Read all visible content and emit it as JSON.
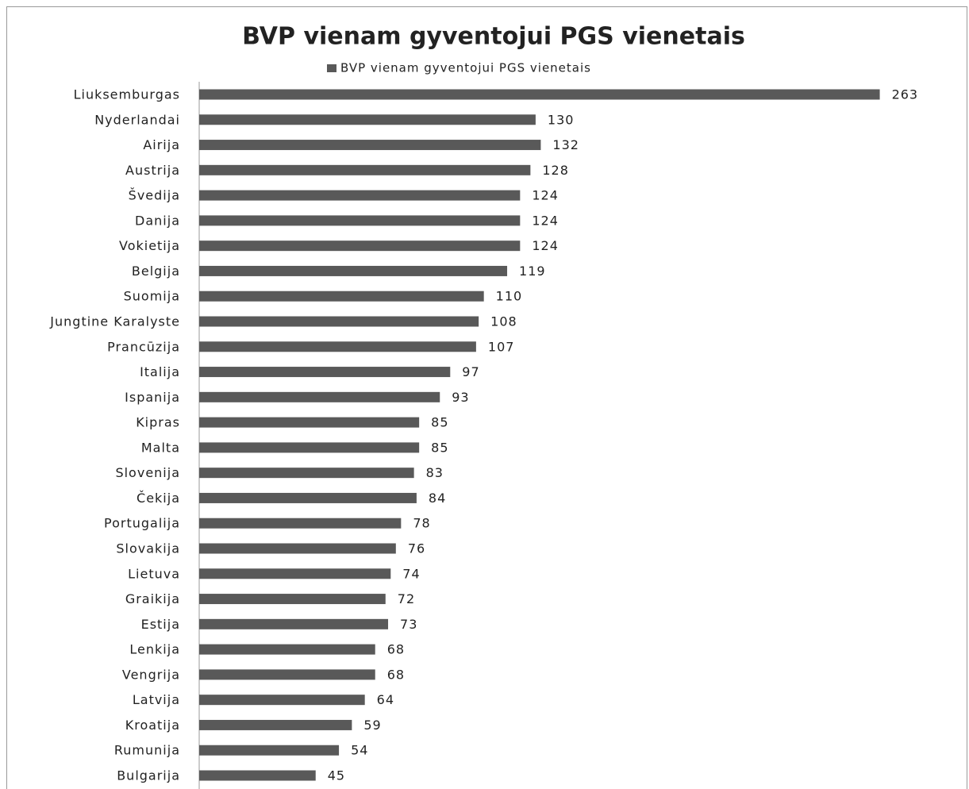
{
  "chart_data": {
    "type": "bar",
    "orientation": "horizontal",
    "title": "BVP vienam gyventojui PGS vienetais",
    "categories": [
      "Liuksemburgas",
      "Nyderlandai",
      "Airija",
      "Austrija",
      "Švedija",
      "Danija",
      "Vokietija",
      "Belgija",
      "Suomija",
      "Jungtine Karalyste",
      "Prancūzija",
      "Italija",
      "Ispanija",
      "Kipras",
      "Malta",
      "Slovenija",
      "Čekija",
      "Portugalija",
      "Slovakija",
      "Lietuva",
      "Graikija",
      "Estija",
      "Lenkija",
      "Vengrija",
      "Latvija",
      "Kroatija",
      "Rumunija",
      "Bulgarija"
    ],
    "series": [
      {
        "name": "BVP vienam gyventojui PGS vienetais",
        "color": "#595959",
        "values": [
          263,
          130,
          132,
          128,
          124,
          124,
          124,
          119,
          110,
          108,
          107,
          97,
          93,
          85,
          85,
          83,
          84,
          78,
          76,
          74,
          72,
          73,
          68,
          68,
          64,
          59,
          54,
          45
        ]
      }
    ],
    "xlim": [
      0,
      280
    ],
    "legend": "top"
  }
}
